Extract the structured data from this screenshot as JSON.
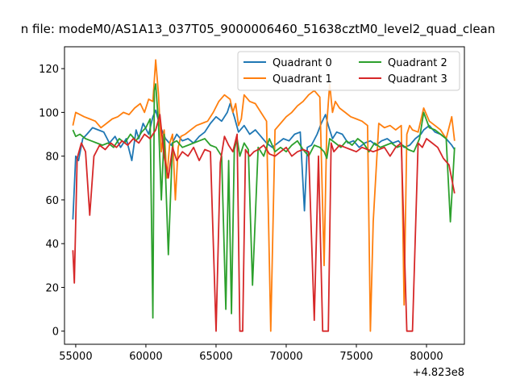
{
  "chart_data": {
    "type": "line",
    "title": "...n file: modeM0/AS1A13_037T05_9000006460_51638cztM0_level2_quad_clean...",
    "title_visible": "n file: modeM0/AS1A13_037T05_9000006460_51638cztM0_level2_quad_clean",
    "xlabel": "",
    "ylabel": "",
    "x_offset_label": "+4.823e8",
    "xlim": [
      54200,
      82700
    ],
    "ylim": [
      -6,
      130
    ],
    "xticks": [
      55000,
      60000,
      65000,
      70000,
      75000,
      80000
    ],
    "xtick_labels": [
      "55000",
      "60000",
      "65000",
      "70000",
      "75000",
      "80000"
    ],
    "yticks": [
      0,
      20,
      40,
      60,
      80,
      100,
      120
    ],
    "ytick_labels": [
      "0",
      "20",
      "40",
      "60",
      "80",
      "100",
      "120"
    ],
    "grid": false,
    "legend_position": "top-right",
    "legend_columns": 2,
    "series": [
      {
        "name": "Quadrant 0",
        "color": "#1f77b4",
        "x": [
          54800,
          55000,
          55200,
          55500,
          55800,
          56200,
          56600,
          57000,
          57400,
          57800,
          58200,
          58600,
          59000,
          59300,
          59500,
          59800,
          60200,
          60500,
          60700,
          61000,
          61400,
          61800,
          62200,
          62600,
          63000,
          63400,
          63800,
          64200,
          64600,
          65000,
          65400,
          65800,
          66000,
          66300,
          66600,
          67000,
          67400,
          67800,
          68200,
          68600,
          69000,
          69400,
          69800,
          70200,
          70600,
          71000,
          71300,
          71500,
          71800,
          72200,
          72500,
          72800,
          73000,
          73300,
          73600,
          74000,
          74400,
          74800,
          75200,
          75600,
          76000,
          76400,
          76800,
          77200,
          77600,
          78000,
          78400,
          78800,
          79200,
          79600,
          79800,
          80200,
          80600,
          81000,
          81400,
          81800,
          82000
        ],
        "y": [
          51,
          80,
          78,
          88,
          90,
          93,
          92,
          91,
          86,
          89,
          84,
          88,
          78,
          92,
          88,
          95,
          90,
          98,
          101,
          94,
          88,
          85,
          90,
          87,
          88,
          86,
          89,
          91,
          95,
          98,
          96,
          100,
          104,
          98,
          91,
          94,
          90,
          92,
          89,
          86,
          84,
          86,
          88,
          87,
          90,
          91,
          55,
          84,
          85,
          90,
          95,
          99,
          94,
          88,
          91,
          90,
          86,
          87,
          84,
          86,
          87,
          85,
          87,
          88,
          86,
          87,
          84,
          85,
          88,
          90,
          92,
          94,
          91,
          90,
          88,
          85,
          83
        ]
      },
      {
        "name": "Quadrant 1",
        "color": "#ff7f0e",
        "x": [
          54800,
          55000,
          55300,
          55600,
          56000,
          56400,
          56800,
          57200,
          57600,
          58000,
          58400,
          58800,
          59200,
          59600,
          59900,
          60200,
          60500,
          60700,
          60900,
          61100,
          61300,
          61500,
          61700,
          61900,
          62100,
          62300,
          62500,
          62800,
          63200,
          63600,
          64000,
          64400,
          64800,
          65200,
          65600,
          66000,
          66200,
          66400,
          66600,
          66800,
          67000,
          67400,
          67800,
          68200,
          68600,
          68900,
          69200,
          69600,
          70000,
          70400,
          70800,
          71200,
          71600,
          72000,
          72400,
          72700,
          72900,
          73100,
          73300,
          73500,
          73800,
          74200,
          74600,
          75000,
          75400,
          75800,
          76000,
          76200,
          76600,
          77000,
          77400,
          77800,
          78200,
          78400,
          78600,
          78800,
          79000,
          79400,
          79800,
          80200,
          80600,
          81000,
          81400,
          81800,
          82000
        ],
        "y": [
          94,
          100,
          99,
          98,
          97,
          96,
          93,
          95,
          97,
          98,
          100,
          99,
          102,
          104,
          100,
          106,
          105,
          124,
          108,
          82,
          92,
          70,
          86,
          90,
          60,
          84,
          89,
          90,
          92,
          94,
          95,
          96,
          100,
          105,
          108,
          106,
          100,
          104,
          94,
          97,
          108,
          105,
          104,
          100,
          96,
          0,
          92,
          95,
          98,
          100,
          103,
          105,
          108,
          110,
          107,
          30,
          95,
          113,
          100,
          105,
          102,
          100,
          98,
          97,
          96,
          94,
          0,
          50,
          95,
          93,
          94,
          92,
          94,
          12,
          90,
          94,
          92,
          91,
          102,
          96,
          94,
          92,
          88,
          98,
          87
        ]
      },
      {
        "name": "Quadrant 2",
        "color": "#2ca02c",
        "x": [
          54800,
          55000,
          55300,
          55700,
          56100,
          56500,
          56900,
          57300,
          57700,
          58100,
          58500,
          58900,
          59300,
          59700,
          60000,
          60300,
          60500,
          60600,
          60700,
          60900,
          61100,
          61300,
          61600,
          61900,
          62200,
          62600,
          63000,
          63400,
          63800,
          64200,
          64600,
          65000,
          65400,
          65700,
          65900,
          66100,
          66300,
          66500,
          66700,
          67000,
          67300,
          67600,
          68000,
          68400,
          68800,
          69200,
          69600,
          70000,
          70400,
          70800,
          71200,
          71600,
          72000,
          72400,
          72700,
          72900,
          73100,
          73500,
          73900,
          74300,
          74700,
          75100,
          75500,
          75900,
          76300,
          76700,
          77100,
          77500,
          77900,
          78300,
          78700,
          79100,
          79500,
          79800,
          80200,
          80600,
          81000,
          81400,
          81700,
          82000
        ],
        "y": [
          92,
          89,
          90,
          88,
          87,
          86,
          85,
          86,
          84,
          88,
          86,
          90,
          87,
          91,
          93,
          97,
          6,
          110,
          113,
          95,
          60,
          90,
          35,
          86,
          87,
          84,
          85,
          86,
          87,
          88,
          85,
          84,
          80,
          10,
          78,
          8,
          83,
          88,
          80,
          86,
          83,
          21,
          84,
          80,
          88,
          82,
          84,
          82,
          85,
          87,
          83,
          80,
          85,
          84,
          82,
          79,
          88,
          86,
          84,
          87,
          85,
          88,
          86,
          82,
          86,
          84,
          85,
          86,
          84,
          85,
          83,
          82,
          88,
          100,
          93,
          92,
          90,
          88,
          50,
          84
        ]
      },
      {
        "name": "Quadrant 3",
        "color": "#d62728",
        "x": [
          54800,
          54900,
          55100,
          55400,
          55700,
          56000,
          56300,
          56700,
          57100,
          57500,
          57900,
          58300,
          58700,
          59100,
          59500,
          59900,
          60300,
          60700,
          61000,
          61300,
          61600,
          61900,
          62200,
          62600,
          63000,
          63400,
          63800,
          64200,
          64600,
          65000,
          65300,
          65600,
          65900,
          66200,
          66500,
          66700,
          66900,
          67100,
          67400,
          67700,
          68000,
          68400,
          68800,
          69200,
          69600,
          70000,
          70400,
          70800,
          71200,
          71600,
          72000,
          72300,
          72600,
          72800,
          73000,
          73200,
          73400,
          73800,
          74200,
          74600,
          75000,
          75400,
          75800,
          76200,
          76600,
          77000,
          77400,
          77800,
          78200,
          78600,
          78800,
          79000,
          79400,
          79700,
          80000,
          80400,
          80800,
          81200,
          81600,
          82000
        ],
        "y": [
          37,
          22,
          79,
          86,
          82,
          53,
          80,
          85,
          83,
          86,
          84,
          87,
          85,
          88,
          86,
          90,
          88,
          92,
          99,
          80,
          70,
          84,
          78,
          82,
          80,
          84,
          78,
          83,
          82,
          0,
          77,
          89,
          85,
          82,
          90,
          0,
          0,
          83,
          80,
          82,
          83,
          85,
          81,
          80,
          82,
          84,
          80,
          82,
          83,
          82,
          5,
          80,
          0,
          0,
          0,
          86,
          82,
          85,
          84,
          83,
          82,
          84,
          83,
          82,
          83,
          84,
          80,
          84,
          86,
          0,
          0,
          0,
          86,
          84,
          88,
          86,
          84,
          79,
          76,
          63
        ]
      }
    ]
  }
}
